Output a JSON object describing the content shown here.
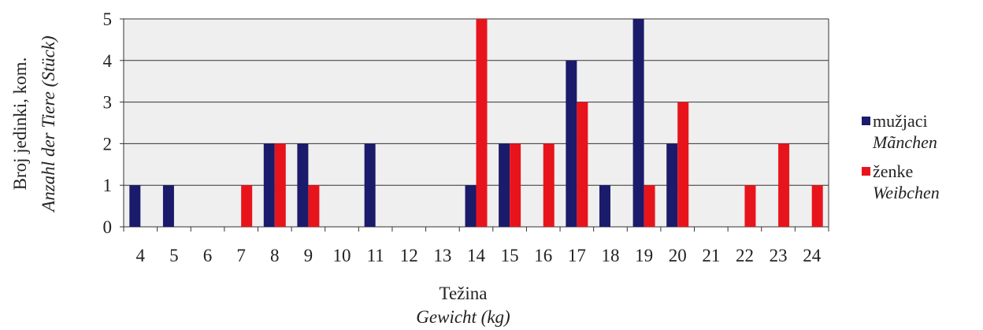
{
  "chart_data": {
    "type": "bar",
    "categories": [
      "4",
      "5",
      "6",
      "7",
      "8",
      "9",
      "10",
      "11",
      "12",
      "13",
      "14",
      "15",
      "16",
      "17",
      "18",
      "19",
      "20",
      "21",
      "22",
      "23",
      "24"
    ],
    "series": [
      {
        "name": "mužjaci",
        "name_sub": "Mãnchen",
        "color": "#1b1b6b",
        "values": [
          1,
          1,
          0,
          0,
          2,
          2,
          0,
          2,
          0,
          0,
          1,
          2,
          0,
          4,
          1,
          5,
          2,
          0,
          0,
          0,
          0
        ]
      },
      {
        "name": "ženke",
        "name_sub": "Weibchen",
        "color": "#e8141c",
        "values": [
          0,
          0,
          0,
          1,
          2,
          1,
          0,
          0,
          0,
          0,
          5,
          2,
          2,
          3,
          0,
          1,
          3,
          0,
          1,
          2,
          1
        ]
      }
    ],
    "ylim": [
      0,
      5
    ],
    "yticks": [
      "0",
      "1",
      "2",
      "3",
      "4",
      "5"
    ],
    "xlabel": "Težina",
    "xlabel_sub": "Gewicht (kg)",
    "ylabel": "Broj jedinki, kom.",
    "ylabel_sub": "Anzahl der Tiere (Stück)",
    "grid": true,
    "legend_position": "right"
  }
}
